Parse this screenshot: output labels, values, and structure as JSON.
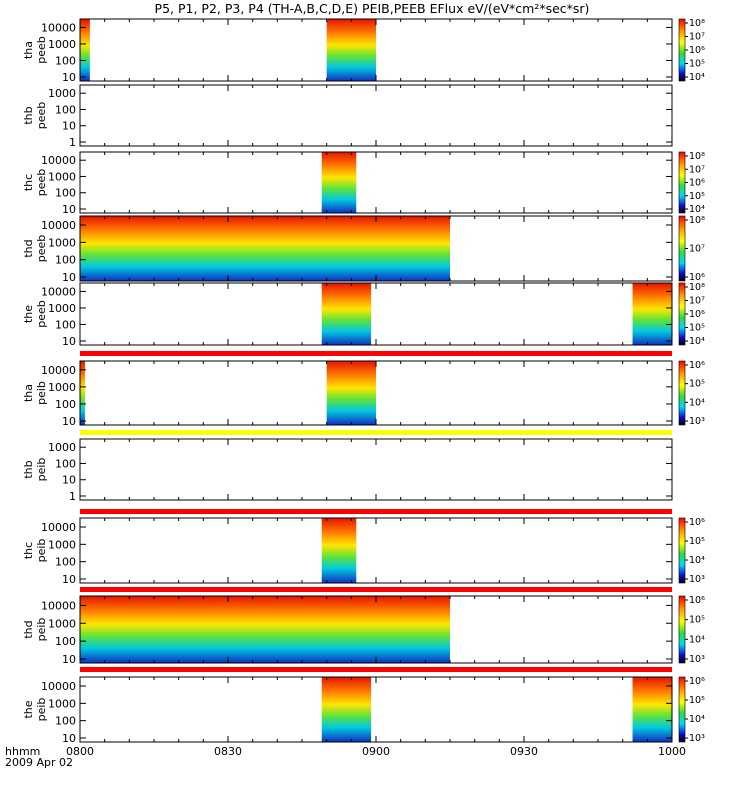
{
  "title": "P5, P1, P2, P3, P4 (TH-A,B,C,D,E) PEIB,PEEB EFlux eV/(eV*cm²*sec*sr)",
  "footer": {
    "time_label": "hhmm",
    "date_label": "2009 Apr 02"
  },
  "colors": {
    "frame": "#000000",
    "red_bar": "#ff0000",
    "yellow_bar": "#ffff00"
  },
  "chart_data": {
    "type": "heatmap",
    "x": {
      "start": "0800",
      "end": "1000",
      "ticks": [
        "0800",
        "0830",
        "0900",
        "0930",
        "1000"
      ]
    },
    "panels": [
      {
        "id": "tha-peeb",
        "ylabel": [
          "tha",
          "peeb"
        ],
        "yticks": [
          "10",
          "100",
          "1000",
          "10000"
        ],
        "colorbar": [
          "10⁴",
          "10⁵",
          "10⁶",
          "10⁷",
          "10⁸"
        ],
        "coverage": [
          [
            "0800",
            "0802"
          ],
          [
            "0850",
            "0900"
          ]
        ]
      },
      {
        "id": "thb-peeb",
        "ylabel": [
          "thb",
          "peeb"
        ],
        "yticks": [
          "1",
          "10",
          "100",
          "1000"
        ],
        "colorbar": [],
        "coverage": []
      },
      {
        "id": "thc-peeb",
        "ylabel": [
          "thc",
          "peeb"
        ],
        "yticks": [
          "10",
          "100",
          "1000",
          "10000"
        ],
        "colorbar": [
          "10⁴",
          "10⁵",
          "10⁶",
          "10⁷",
          "10⁸"
        ],
        "coverage": [
          [
            "0849",
            "0856"
          ]
        ]
      },
      {
        "id": "thd-peeb",
        "ylabel": [
          "thd",
          "peeb"
        ],
        "yticks": [
          "10",
          "100",
          "1000",
          "10000"
        ],
        "colorbar": [
          "10⁶",
          "10⁷",
          "10⁸"
        ],
        "coverage": [
          [
            "0800",
            "0915"
          ]
        ]
      },
      {
        "id": "the-peeb",
        "ylabel": [
          "the",
          "peeb"
        ],
        "yticks": [
          "10",
          "100",
          "1000",
          "10000"
        ],
        "colorbar": [
          "10⁴",
          "10⁵",
          "10⁶",
          "10⁷",
          "10⁸"
        ],
        "coverage": [
          [
            "0849",
            "0859"
          ],
          [
            "0952",
            "1000"
          ]
        ]
      },
      {
        "id": "tha-peib",
        "ylabel": [
          "tha",
          "peib"
        ],
        "yticks": [
          "10",
          "100",
          "1000",
          "10000"
        ],
        "colorbar": [
          "10³",
          "10⁴",
          "10⁵",
          "10⁶"
        ],
        "coverage": [
          [
            "0800",
            "0801"
          ],
          [
            "0850",
            "0900"
          ]
        ]
      },
      {
        "id": "thb-peib",
        "ylabel": [
          "thb",
          "peib"
        ],
        "yticks": [
          "1",
          "10",
          "100",
          "1000"
        ],
        "colorbar": [],
        "coverage": []
      },
      {
        "id": "thc-peib",
        "ylabel": [
          "thc",
          "peib"
        ],
        "yticks": [
          "10",
          "100",
          "1000",
          "10000"
        ],
        "colorbar": [
          "10³",
          "10⁴",
          "10⁵",
          "10⁶"
        ],
        "coverage": [
          [
            "0849",
            "0856"
          ]
        ]
      },
      {
        "id": "thd-peib",
        "ylabel": [
          "thd",
          "peib"
        ],
        "yticks": [
          "10",
          "100",
          "1000",
          "10000"
        ],
        "colorbar": [
          "10³",
          "10⁴",
          "10⁵",
          "10⁶"
        ],
        "coverage": [
          [
            "0800",
            "0915"
          ]
        ]
      },
      {
        "id": "the-peib",
        "ylabel": [
          "the",
          "peib"
        ],
        "yticks": [
          "10",
          "100",
          "1000",
          "10000"
        ],
        "colorbar": [
          "10³",
          "10⁴",
          "10⁵",
          "10⁶"
        ],
        "coverage": [
          [
            "0849",
            "0859"
          ],
          [
            "0952",
            "1000"
          ]
        ]
      }
    ]
  }
}
